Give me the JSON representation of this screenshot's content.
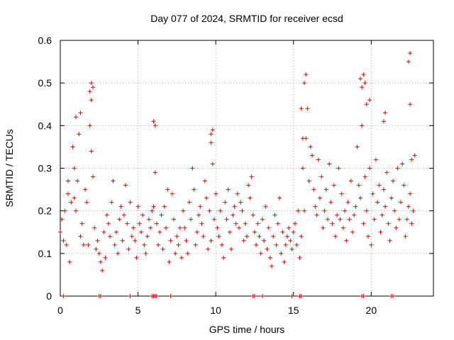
{
  "chart_data": {
    "type": "scatter",
    "title": "Day 077 of 2024, SRMTID for receiver ecsd",
    "xlabel": "GPS time / hours",
    "ylabel": "SRMTID / TECUs",
    "xlim": [
      0,
      24
    ],
    "ylim": [
      0,
      0.6
    ],
    "xticks": [
      0,
      5,
      10,
      15,
      20
    ],
    "xtick_labels": [
      "0",
      "5",
      "10",
      "15",
      "20"
    ],
    "yticks": [
      0,
      0.1,
      0.2,
      0.3,
      0.4,
      0.5,
      0.6
    ],
    "ytick_labels": [
      "0",
      "0.1",
      "0.2",
      "0.3",
      "0.4",
      "0.5",
      "0.6"
    ],
    "grid": true,
    "marker": "+",
    "color": "#e00000",
    "series": [
      {
        "name": "SRMTID",
        "x": [
          0.0,
          0.1,
          0.2,
          0.3,
          0.4,
          0.5,
          0.6,
          0.7,
          0.8,
          0.9,
          1.0,
          1.1,
          1.2,
          1.3,
          1.4,
          1.5,
          1.6,
          1.7,
          1.8,
          1.9,
          2.0,
          2.1,
          2.2,
          2.3,
          2.4,
          2.5,
          2.6,
          2.7,
          2.8,
          2.9,
          3.0,
          3.1,
          3.2,
          3.3,
          3.4,
          3.5,
          3.6,
          3.7,
          3.8,
          3.9,
          4.0,
          4.1,
          4.2,
          4.3,
          4.4,
          4.5,
          4.6,
          4.7,
          4.8,
          4.9,
          5.0,
          5.1,
          5.2,
          5.3,
          5.4,
          5.5,
          5.6,
          5.7,
          5.8,
          5.9,
          6.0,
          6.1,
          6.2,
          6.3,
          6.4,
          6.5,
          6.6,
          6.7,
          6.8,
          6.9,
          7.0,
          7.1,
          7.2,
          7.3,
          7.4,
          7.5,
          7.6,
          7.7,
          7.8,
          7.9,
          8.0,
          8.1,
          8.2,
          8.3,
          8.4,
          8.5,
          8.6,
          8.7,
          8.8,
          8.9,
          9.0,
          9.1,
          9.2,
          9.3,
          9.4,
          9.5,
          9.6,
          9.7,
          9.8,
          9.9,
          10.0,
          10.1,
          10.2,
          10.3,
          10.4,
          10.5,
          10.6,
          10.7,
          10.8,
          10.9,
          11.0,
          11.1,
          11.2,
          11.3,
          11.4,
          11.5,
          11.6,
          11.7,
          11.8,
          11.9,
          12.0,
          12.1,
          12.2,
          12.3,
          12.4,
          12.5,
          12.6,
          12.7,
          12.8,
          12.9,
          13.0,
          13.1,
          13.2,
          13.3,
          13.4,
          13.5,
          13.6,
          13.7,
          13.8,
          13.9,
          14.0,
          14.1,
          14.2,
          14.3,
          14.4,
          14.5,
          14.6,
          14.7,
          14.8,
          14.9,
          15.0,
          15.1,
          15.2,
          15.3,
          15.4,
          15.5,
          15.6,
          15.7,
          15.8,
          15.9,
          16.0,
          16.1,
          16.2,
          16.3,
          16.4,
          16.5,
          16.6,
          16.7,
          16.8,
          16.9,
          17.0,
          17.1,
          17.2,
          17.3,
          17.4,
          17.5,
          17.6,
          17.7,
          17.8,
          17.9,
          18.0,
          18.1,
          18.2,
          18.3,
          18.4,
          18.5,
          18.6,
          18.7,
          18.8,
          18.9,
          19.0,
          19.1,
          19.2,
          19.3,
          19.4,
          19.5,
          19.6,
          19.7,
          19.8,
          19.9,
          20.0,
          20.1,
          20.2,
          20.3,
          20.4,
          20.5,
          20.6,
          20.7,
          20.8,
          20.9,
          21.0,
          21.1,
          21.2,
          21.3,
          21.4,
          21.5,
          21.6,
          21.7,
          21.8,
          21.9,
          22.0,
          22.1,
          22.2,
          22.3,
          22.4,
          22.5,
          22.6,
          22.7,
          22.8,
          0.5,
          0.9,
          1.0,
          1.9,
          2.0,
          2.0,
          2.1,
          1.3,
          6.0,
          6.1,
          9.7,
          9.7,
          9.8,
          15.5,
          15.6,
          15.7,
          15.8,
          19.3,
          19.4,
          19.5,
          19.6,
          19.7,
          19.9,
          20.8,
          20.9,
          22.4,
          22.5,
          22.5,
          22.6
        ],
        "y": [
          0.15,
          0.18,
          0.13,
          0.2,
          0.12,
          0.24,
          0.08,
          0.22,
          0.35,
          0.3,
          0.2,
          0.27,
          0.38,
          0.14,
          0.17,
          0.12,
          0.25,
          0.22,
          0.12,
          0.4,
          0.34,
          0.28,
          0.16,
          0.11,
          0.13,
          0.1,
          0.08,
          0.06,
          0.15,
          0.09,
          0.19,
          0.17,
          0.14,
          0.22,
          0.27,
          0.12,
          0.15,
          0.1,
          0.18,
          0.21,
          0.13,
          0.19,
          0.26,
          0.17,
          0.11,
          0.22,
          0.14,
          0.16,
          0.13,
          0.09,
          0.21,
          0.17,
          0.15,
          0.19,
          0.12,
          0.1,
          0.14,
          0.18,
          0.16,
          0.2,
          0.21,
          0.29,
          0.17,
          0.12,
          0.15,
          0.19,
          0.11,
          0.21,
          0.16,
          0.25,
          0.08,
          0.13,
          0.24,
          0.18,
          0.1,
          0.14,
          0.12,
          0.16,
          0.09,
          0.2,
          0.16,
          0.13,
          0.1,
          0.22,
          0.18,
          0.3,
          0.25,
          0.12,
          0.15,
          0.19,
          0.21,
          0.17,
          0.14,
          0.27,
          0.23,
          0.11,
          0.2,
          0.13,
          0.31,
          0.18,
          0.24,
          0.16,
          0.14,
          0.2,
          0.12,
          0.09,
          0.22,
          0.18,
          0.25,
          0.15,
          0.11,
          0.19,
          0.21,
          0.17,
          0.24,
          0.16,
          0.22,
          0.2,
          0.13,
          0.17,
          0.14,
          0.26,
          0.23,
          0.28,
          0.19,
          0.15,
          0.12,
          0.17,
          0.14,
          0.1,
          0.18,
          0.13,
          0.21,
          0.11,
          0.16,
          0.09,
          0.07,
          0.14,
          0.19,
          0.12,
          0.17,
          0.23,
          0.1,
          0.15,
          0.08,
          0.12,
          0.14,
          0.16,
          0.13,
          0.11,
          0.15,
          0.17,
          0.12,
          0.2,
          0.09,
          0.14,
          0.3,
          0.2,
          0.37,
          0.44,
          0.27,
          0.35,
          0.33,
          0.25,
          0.21,
          0.19,
          0.32,
          0.23,
          0.28,
          0.16,
          0.2,
          0.25,
          0.18,
          0.31,
          0.22,
          0.17,
          0.26,
          0.14,
          0.19,
          0.3,
          0.18,
          0.24,
          0.16,
          0.2,
          0.13,
          0.22,
          0.18,
          0.27,
          0.15,
          0.19,
          0.21,
          0.35,
          0.26,
          0.23,
          0.4,
          0.17,
          0.28,
          0.2,
          0.14,
          0.3,
          0.12,
          0.24,
          0.18,
          0.32,
          0.22,
          0.26,
          0.15,
          0.19,
          0.25,
          0.21,
          0.29,
          0.17,
          0.13,
          0.23,
          0.27,
          0.2,
          0.16,
          0.3,
          0.18,
          0.22,
          0.31,
          0.26,
          0.14,
          0.18,
          0.21,
          0.24,
          0.17,
          0.2,
          0.33,
          0.27,
          0.23,
          0.42,
          0.48,
          0.46,
          0.5,
          0.49,
          0.43,
          0.41,
          0.4,
          0.38,
          0.36,
          0.39,
          0.44,
          0.37,
          0.5,
          0.52,
          0.51,
          0.49,
          0.52,
          0.5,
          0.45,
          0.46,
          0.41,
          0.43,
          0.55,
          0.57,
          0.45,
          0.32
        ]
      }
    ],
    "zero_markers_x": [
      0.2,
      2.5,
      2.6,
      4.5,
      5.9,
      6.0,
      6.1,
      6.2,
      7.1,
      12.4,
      12.5,
      13.0,
      14.9,
      15.4,
      15.5,
      19.4,
      19.5,
      21.3,
      21.4
    ]
  }
}
